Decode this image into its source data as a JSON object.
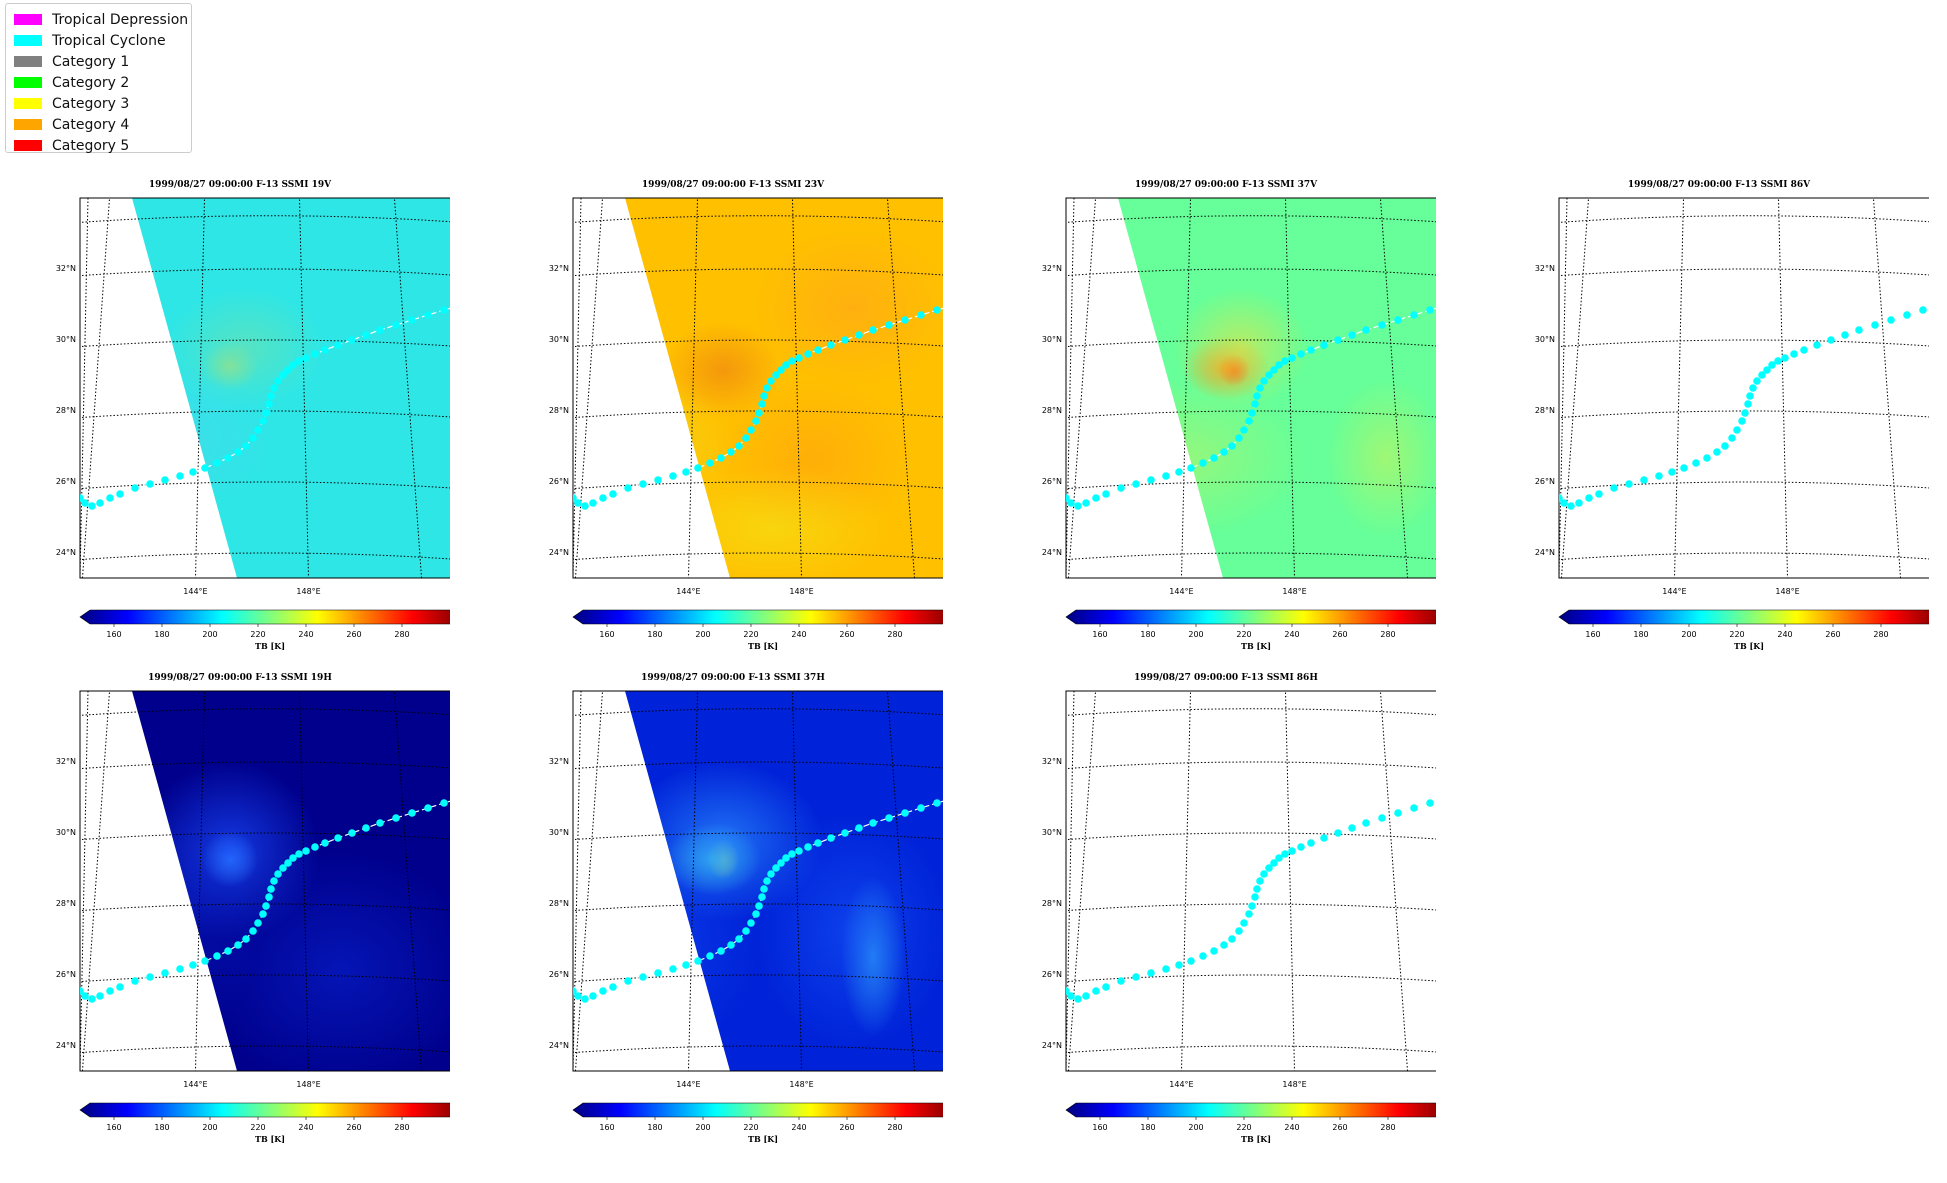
{
  "legend": {
    "items": [
      {
        "label": "Tropical Depression",
        "color": "#ff00ff"
      },
      {
        "label": "Tropical Cyclone",
        "color": "#00ffff"
      },
      {
        "label": "Category 1",
        "color": "#808080"
      },
      {
        "label": "Category 2",
        "color": "#00ff00"
      },
      {
        "label": "Category 3",
        "color": "#ffff00"
      },
      {
        "label": "Category 4",
        "color": "#ffa500"
      },
      {
        "label": "Category 5",
        "color": "#ff0000"
      }
    ]
  },
  "panels": [
    {
      "title": "1999/08/27 09:00:00  F-13 SSMI 19V",
      "field": "teal",
      "has_data": true
    },
    {
      "title": "1999/08/27 09:00:00  F-13 SSMI 23V",
      "field": "orange",
      "has_data": true
    },
    {
      "title": "1999/08/27 09:00:00  F-13 SSMI 37V",
      "field": "green",
      "has_data": true
    },
    {
      "title": "1999/08/27 09:00:00  F-13 SSMI 86V",
      "field": "none",
      "has_data": false
    },
    {
      "title": "1999/08/27 09:00:00  F-13 SSMI 19H",
      "field": "navy",
      "has_data": true
    },
    {
      "title": "1999/08/27 09:00:00  F-13 SSMI 37H",
      "field": "blue",
      "has_data": true
    },
    {
      "title": "1999/08/27 09:00:00  F-13 SSMI 86H",
      "field": "none",
      "has_data": false
    }
  ],
  "map": {
    "lat_labels": [
      "32°N",
      "30°N",
      "28°N",
      "26°N",
      "24°N"
    ],
    "lon_labels": [
      "144°E",
      "148°E"
    ],
    "track_color": "#00ffff"
  },
  "colorbar": {
    "ticks": [
      "160",
      "180",
      "200",
      "220",
      "240",
      "260",
      "280"
    ],
    "label": "TB [K]",
    "range": [
      150,
      300
    ]
  }
}
